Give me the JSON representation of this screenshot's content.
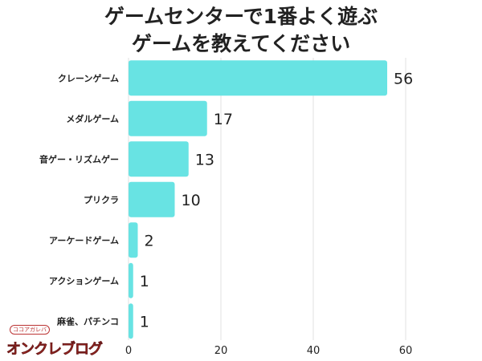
{
  "chart_data": {
    "type": "bar",
    "orientation": "horizontal",
    "title_lines": [
      "ゲームセンターで1番よく遊ぶ",
      "ゲームを教えてください"
    ],
    "categories": [
      "クレーンゲーム",
      "メダルゲーム",
      "音ゲー・リズムゲー",
      "プリクラ",
      "アーケードゲーム",
      "アクションゲーム",
      "麻雀、パチンコ"
    ],
    "values": [
      56,
      17,
      13,
      10,
      2,
      1,
      1
    ],
    "xlim": [
      0,
      60
    ],
    "xticks": [
      0,
      20,
      40,
      60
    ],
    "grid": true,
    "bar_color": "#68e3e3",
    "xlabel": "",
    "ylabel": ""
  },
  "logo": {
    "small_text": "ココアガレバ",
    "main_text": "オンクレブログ"
  }
}
